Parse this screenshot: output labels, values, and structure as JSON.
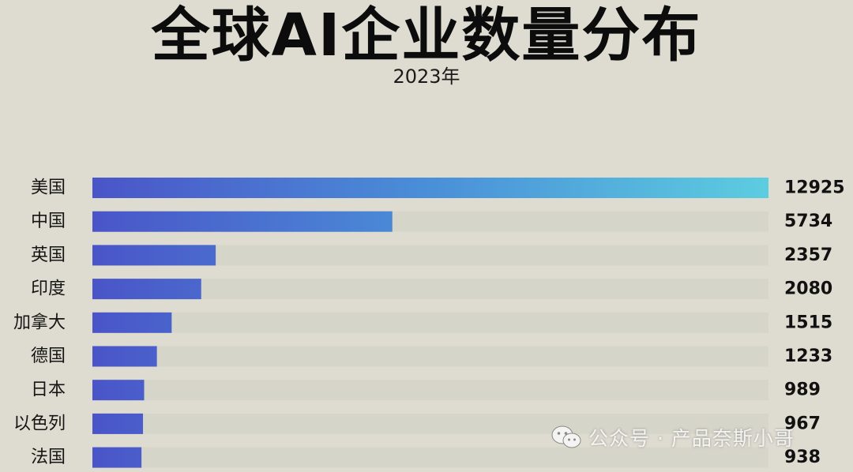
{
  "chart_data": {
    "type": "bar",
    "orientation": "horizontal",
    "title": "全球AI企业数量分布",
    "subtitle": "2023年",
    "categories": [
      "美国",
      "中国",
      "英国",
      "印度",
      "加拿大",
      "德国",
      "日本",
      "以色列",
      "法国"
    ],
    "values": [
      12925,
      5734,
      2357,
      2080,
      1515,
      1233,
      989,
      967,
      938
    ],
    "value_labels": [
      "12925",
      "5734",
      "2357",
      "2080",
      "1515",
      "1233",
      "989",
      "967",
      "938"
    ],
    "xlim": [
      0,
      12925
    ],
    "grid": false,
    "legend": "none",
    "colors": {
      "bar_start": "#4a55c8",
      "bar_mid": "#4a8fd8",
      "bar_end": "#5ccde0",
      "track": "#d6d5c9"
    }
  },
  "watermark": {
    "icon": "wechat-icon",
    "text": "公众号 · 产品奈斯小哥"
  }
}
